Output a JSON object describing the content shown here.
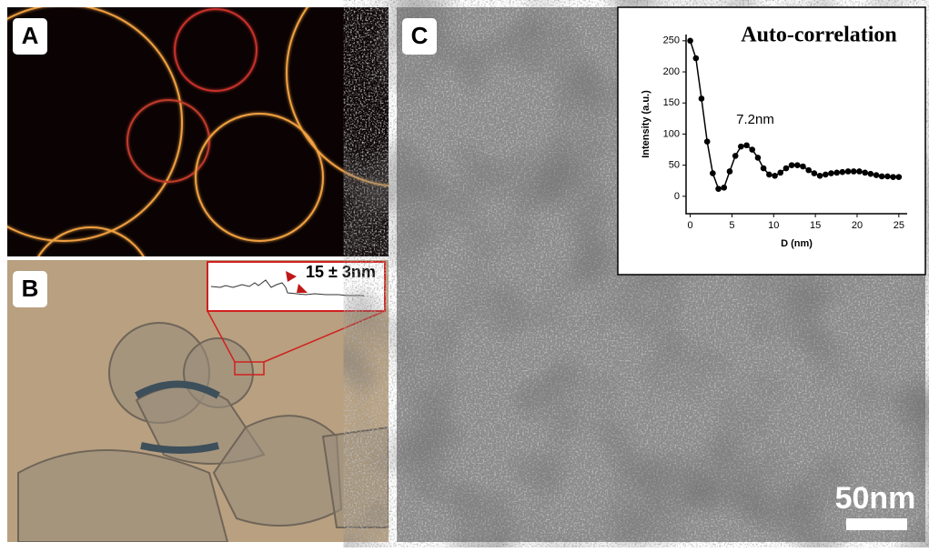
{
  "panels": {
    "a": {
      "label": "A"
    },
    "b": {
      "label": "B",
      "annotation": "15 ± 3nm"
    },
    "c": {
      "label": "C",
      "scale_bar": "50nm"
    }
  },
  "chart_data": {
    "type": "line",
    "title": "Auto-correlation",
    "x_label": "D (nm)",
    "y_label": "Intensity (a.u.)",
    "annotation": "7.2nm",
    "x": [
      0,
      0.68,
      1.35,
      2.03,
      2.7,
      3.38,
      4.05,
      4.73,
      5.41,
      6.08,
      6.76,
      7.43,
      8.11,
      8.78,
      9.46,
      10.14,
      10.81,
      11.49,
      12.16,
      12.84,
      13.51,
      14.19,
      14.86,
      15.54,
      16.22,
      16.89,
      17.57,
      18.24,
      18.92,
      19.59,
      20.27,
      20.95,
      21.62,
      22.3,
      22.97,
      23.65,
      24.32,
      25
    ],
    "series": [
      {
        "color": "#000000",
        "values": [
          250,
          222,
          157,
          88,
          37,
          12,
          14,
          40,
          65,
          80,
          82,
          75,
          62,
          45,
          35,
          33,
          38,
          45,
          50,
          50,
          48,
          42,
          37,
          33,
          35,
          37,
          38,
          39,
          40,
          40,
          40,
          38,
          36,
          34,
          32,
          32,
          31,
          31
        ]
      }
    ],
    "xlim": [
      -0.5,
      26
    ],
    "ylim": [
      -28,
      260
    ],
    "xticks": [
      0,
      5,
      10,
      15,
      20,
      25
    ],
    "yticks": [
      0,
      50,
      100,
      150,
      200,
      250
    ]
  }
}
